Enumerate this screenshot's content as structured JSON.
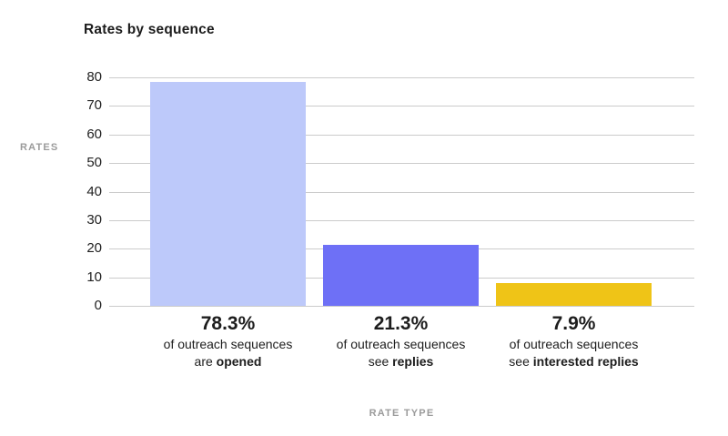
{
  "title": "Rates by sequence",
  "chart_data": {
    "type": "bar",
    "title": "Rates by sequence",
    "xlabel": "RATE TYPE",
    "ylabel": "RATES",
    "ylim": [
      0,
      80
    ],
    "yticks": [
      0,
      10,
      20,
      30,
      40,
      50,
      60,
      70,
      80
    ],
    "grid": true,
    "legend": false,
    "values": [
      78.3,
      21.3,
      7.9
    ],
    "categories": [
      {
        "name": "opened",
        "pct": "78.3%",
        "desc_line": "of outreach sequences",
        "suffix_prefix": "are",
        "suffix_bold": "opened",
        "color": "#BDC9FA"
      },
      {
        "name": "replies",
        "pct": "21.3%",
        "desc_line": "of outreach sequences",
        "suffix_prefix": "see",
        "suffix_bold": "replies",
        "color": "#6E70F6"
      },
      {
        "name": "interested-replies",
        "pct": "7.9%",
        "desc_line": "of outreach sequences",
        "suffix_prefix": "see",
        "suffix_bold": "interested replies",
        "color": "#EFC417"
      }
    ]
  },
  "colors": {
    "grid": "#CBCBCB",
    "axis_title": "#9B9B9B",
    "tick_label": "#212121",
    "text": "#1D1D1D",
    "background": "#FFFFFF"
  }
}
